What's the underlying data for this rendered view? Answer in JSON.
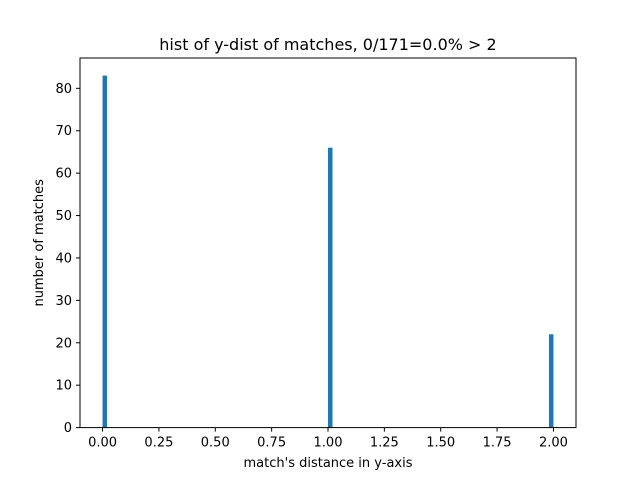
{
  "chart_data": {
    "type": "bar",
    "title": "hist of y-dist of matches, 0/171=0.0% > 2",
    "xlabel": "match's distance in y-axis",
    "ylabel": "number of matches",
    "xlim": [
      -0.1,
      2.1
    ],
    "ylim": [
      0,
      87.15
    ],
    "bin_width": 0.02,
    "bars": [
      {
        "x": 0.0,
        "value": 83
      },
      {
        "x": 1.0,
        "value": 66
      },
      {
        "x": 1.98,
        "value": 22
      }
    ],
    "xticks": [
      "0.00",
      "0.25",
      "0.50",
      "0.75",
      "1.00",
      "1.25",
      "1.50",
      "1.75",
      "2.00"
    ],
    "xtick_values": [
      0,
      0.25,
      0.5,
      0.75,
      1.0,
      1.25,
      1.5,
      1.75,
      2.0
    ],
    "yticks": [
      "0",
      "10",
      "20",
      "30",
      "40",
      "50",
      "60",
      "70",
      "80"
    ],
    "ytick_values": [
      0,
      10,
      20,
      30,
      40,
      50,
      60,
      70,
      80
    ],
    "bar_color": "#1f77b4",
    "grid": false,
    "legend": "none"
  }
}
